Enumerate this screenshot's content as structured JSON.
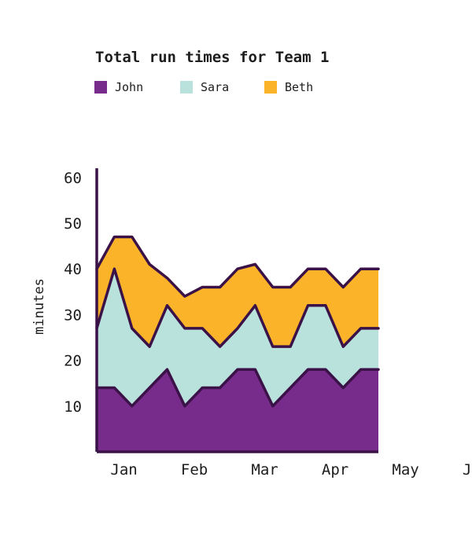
{
  "chart_data": {
    "type": "area",
    "stacked": true,
    "title": "Total run times for Team 1",
    "xlabel": "",
    "ylabel": "minutes",
    "x_tick_labels": [
      "Jan",
      "Feb",
      "Mar",
      "Apr",
      "May",
      "Jun"
    ],
    "y_ticks": [
      10,
      20,
      30,
      40,
      50,
      60
    ],
    "ylim": [
      0,
      62
    ],
    "legend_position": "top-left",
    "grid": false,
    "points_per_month": 4,
    "series": [
      {
        "name": "John",
        "color": "#772b8a",
        "values": [
          14,
          14,
          10,
          14,
          18,
          10,
          14,
          14,
          18,
          18,
          10,
          14,
          18,
          18,
          14,
          18,
          18
        ]
      },
      {
        "name": "Sara",
        "color": "#b9e2dd",
        "values": [
          13,
          26,
          17,
          9,
          14,
          17,
          13,
          9,
          9,
          14,
          13,
          9,
          14,
          14,
          9,
          9,
          9
        ]
      },
      {
        "name": "Beth",
        "color": "#fbb429",
        "values": [
          13,
          7,
          20,
          18,
          6,
          7,
          9,
          13,
          13,
          9,
          13,
          13,
          8,
          8,
          13,
          13,
          13
        ]
      }
    ]
  }
}
